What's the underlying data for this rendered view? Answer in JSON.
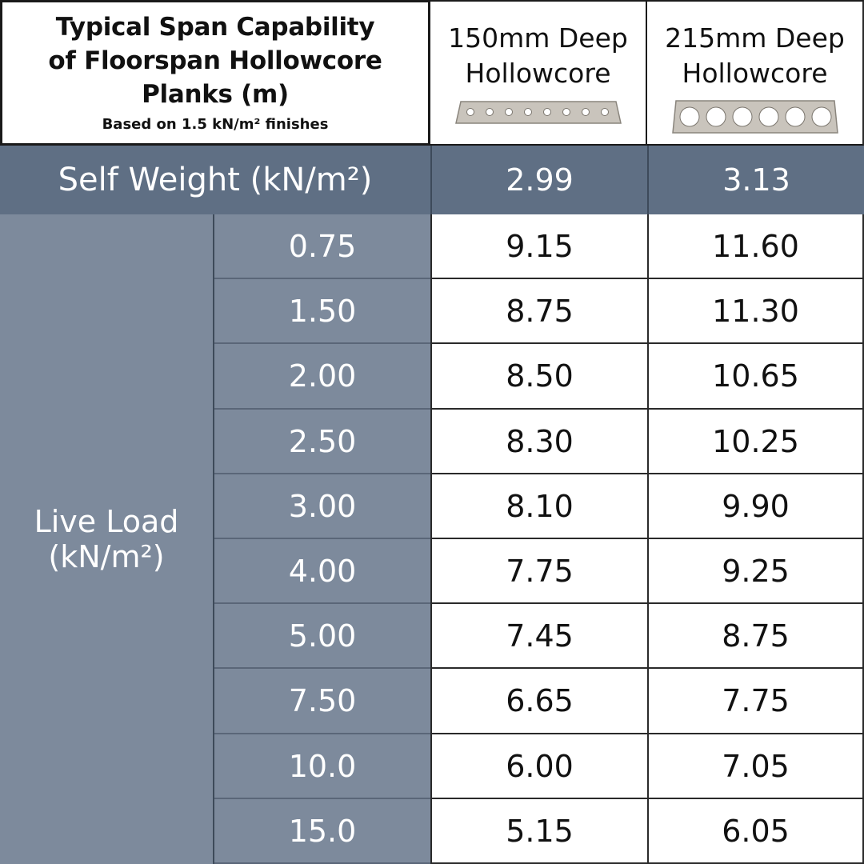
{
  "title": {
    "line1": "Typical Span Capability",
    "line2": "of Floorspan Hollowcore",
    "line3": "Planks (m)",
    "subtitle": "Based on 1.5 kN/m² finishes"
  },
  "columns": [
    {
      "line1": "150mm Deep",
      "line2": "Hollowcore"
    },
    {
      "line1": "215mm Deep",
      "line2": "Hollowcore"
    }
  ],
  "self_weight": {
    "label": "Self Weight (kN/m²)",
    "values": [
      "2.99",
      "3.13"
    ]
  },
  "live_load": {
    "label_line1": "Live Load",
    "label_line2": "(kN/m²)"
  },
  "colors": {
    "header_bar": "#5f6f84",
    "side_column": "#7d8a9c",
    "border": "#1a1a1a"
  },
  "chart_data": {
    "type": "table",
    "title": "Typical Span Capability of Floorspan Hollowcore Planks (m)",
    "subtitle": "Based on 1.5 kN/m² finishes",
    "row_header": "Live Load (kN/m²)",
    "columns": [
      "150mm Deep Hollowcore",
      "215mm Deep Hollowcore"
    ],
    "self_weight": [
      2.99,
      3.13
    ],
    "rows": [
      {
        "load": "0.75",
        "values": [
          "9.15",
          "11.60"
        ]
      },
      {
        "load": "1.50",
        "values": [
          "8.75",
          "11.30"
        ]
      },
      {
        "load": "2.00",
        "values": [
          "8.50",
          "10.65"
        ]
      },
      {
        "load": "2.50",
        "values": [
          "8.30",
          "10.25"
        ]
      },
      {
        "load": "3.00",
        "values": [
          "8.10",
          "9.90"
        ]
      },
      {
        "load": "4.00",
        "values": [
          "7.75",
          "9.25"
        ]
      },
      {
        "load": "5.00",
        "values": [
          "7.45",
          "8.75"
        ]
      },
      {
        "load": "7.50",
        "values": [
          "6.65",
          "7.75"
        ]
      },
      {
        "load": "10.0",
        "values": [
          "6.00",
          "7.05"
        ]
      },
      {
        "load": "15.0",
        "values": [
          "5.15",
          "6.05"
        ]
      }
    ]
  }
}
